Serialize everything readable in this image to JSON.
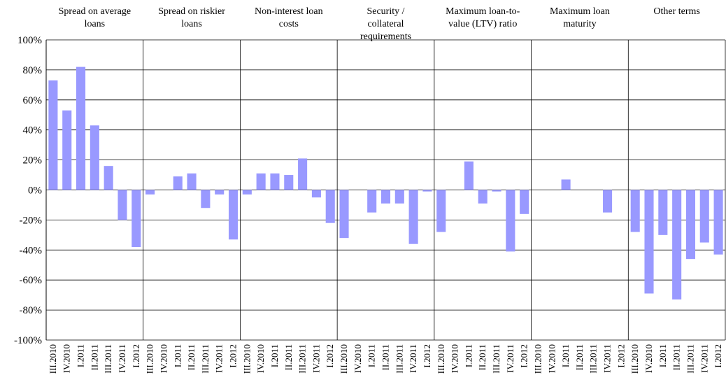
{
  "chart_data": {
    "type": "bar",
    "color": "#9999ff",
    "ylim": [
      -100,
      100
    ],
    "yticks": [
      "-100%",
      "-80%",
      "-60%",
      "-40%",
      "-20%",
      "0%",
      "20%",
      "40%",
      "60%",
      "80%",
      "100%"
    ],
    "ytick_values": [
      -100,
      -80,
      -60,
      -40,
      -20,
      0,
      20,
      40,
      60,
      80,
      100
    ],
    "categories": [
      "III.2010",
      "IV.2010",
      "I.2011",
      "II.2011",
      "III.2011",
      "IV.2011",
      "I.2012"
    ],
    "grid": true,
    "panels": [
      {
        "title": "Spread on average loans",
        "values": [
          73,
          53,
          82,
          43,
          16,
          -20,
          -38
        ]
      },
      {
        "title": "Spread on riskier loans",
        "values": [
          -3,
          0,
          9,
          11,
          -12,
          -3,
          -33
        ]
      },
      {
        "title": "Non-interest loan costs",
        "values": [
          -3,
          11,
          11,
          10,
          21,
          -5,
          -22
        ]
      },
      {
        "title": "Security / collateral requirements",
        "values": [
          -32,
          0,
          -15,
          -9,
          -9,
          -36,
          -1
        ]
      },
      {
        "title": "Maximum loan-to-value (LTV) ratio",
        "values": [
          -28,
          0,
          19,
          -9,
          -1,
          -41,
          -16
        ]
      },
      {
        "title": "Maximum loan maturity",
        "values": [
          0,
          0,
          7,
          0,
          0,
          -15,
          0
        ]
      },
      {
        "title": "Other terms",
        "values": [
          -28,
          -69,
          -30,
          -73,
          -46,
          -35,
          -43
        ]
      }
    ]
  }
}
